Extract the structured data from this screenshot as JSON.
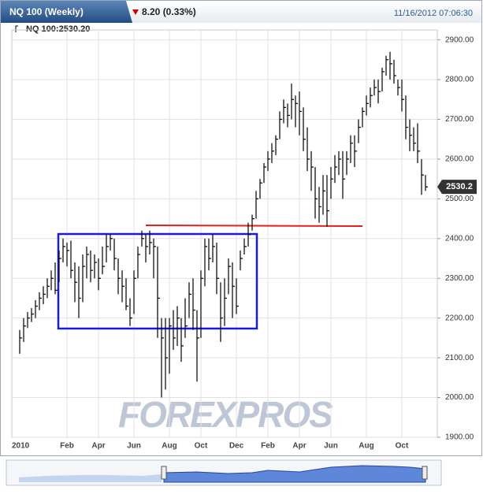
{
  "chart_data": {
    "type": "ohlc",
    "title": "NQ 100 (Weekly)",
    "change": "8.20 (0.33%)",
    "timestamp": "11/16/2012 07:06:30",
    "instrument_label": "NQ 100:2530.20",
    "last_price": 2530.2,
    "watermark": "FOREXPROS",
    "color": "#000000",
    "grid": true,
    "ylim": [
      1900,
      2925
    ],
    "yticks": [
      {
        "value": 1900,
        "label": "1900.00"
      },
      {
        "value": 2000,
        "label": "2000.00"
      },
      {
        "value": 2100,
        "label": "2100.00"
      },
      {
        "value": 2200,
        "label": "2200.00"
      },
      {
        "value": 2300,
        "label": "2300.00"
      },
      {
        "value": 2400,
        "label": "2400.00"
      },
      {
        "value": 2500,
        "label": "2500.00"
      },
      {
        "value": 2600,
        "label": "2600.00"
      },
      {
        "value": 2700,
        "label": "2700.00"
      },
      {
        "value": 2800,
        "label": "2800.00"
      },
      {
        "value": 2900,
        "label": "2900.00"
      }
    ],
    "categories": [
      "2010",
      null,
      null,
      null,
      null,
      null,
      null,
      null,
      null,
      null,
      null,
      null,
      "Feb",
      null,
      null,
      null,
      null,
      null,
      null,
      null,
      "Apr",
      null,
      null,
      null,
      null,
      null,
      null,
      null,
      null,
      "Jun",
      null,
      null,
      null,
      null,
      null,
      null,
      null,
      null,
      "Aug",
      null,
      null,
      null,
      null,
      null,
      null,
      null,
      "Oct",
      null,
      null,
      null,
      null,
      null,
      null,
      null,
      null,
      "Dec",
      null,
      null,
      null,
      null,
      null,
      null,
      null,
      "Feb",
      null,
      null,
      null,
      null,
      null,
      null,
      null,
      "Apr",
      null,
      null,
      null,
      null,
      null,
      null,
      null,
      "Jun",
      null,
      null,
      null,
      null,
      null,
      null,
      null,
      null,
      "Aug",
      null,
      null,
      null,
      null,
      null,
      null,
      null,
      null,
      "Oct",
      null,
      null,
      null,
      null,
      null,
      null
    ],
    "high": [
      2170,
      2200,
      2215,
      2225,
      2245,
      2265,
      2280,
      2300,
      2320,
      2340,
      2370,
      2400,
      2390,
      2395,
      2340,
      2330,
      2360,
      2380,
      2370,
      2360,
      2350,
      2380,
      2410,
      2410,
      2400,
      2350,
      2320,
      2300,
      2250,
      2320,
      2380,
      2420,
      2410,
      2420,
      2400,
      2380,
      2200,
      2200,
      2200,
      2220,
      2230,
      2200,
      2250,
      2290,
      2300,
      2220,
      2320,
      2400,
      2400,
      2410,
      2390,
      2290,
      2300,
      2350,
      2340,
      2300,
      2370,
      2400,
      2440,
      2460,
      2520,
      2550,
      2590,
      2620,
      2640,
      2660,
      2720,
      2750,
      2740,
      2790,
      2760,
      2770,
      2730,
      2680,
      2620,
      2580,
      2530,
      2560,
      2560,
      2580,
      2610,
      2620,
      2620,
      2620,
      2660,
      2660,
      2700,
      2730,
      2760,
      2780,
      2800,
      2800,
      2830,
      2860,
      2870,
      2850,
      2800,
      2800,
      2760,
      2700,
      2680,
      2690,
      2600,
      2560
    ],
    "low": [
      2110,
      2140,
      2175,
      2190,
      2200,
      2220,
      2235,
      2250,
      2270,
      2260,
      2290,
      2340,
      2330,
      2300,
      2240,
      2200,
      2240,
      2300,
      2290,
      2300,
      2270,
      2310,
      2340,
      2370,
      2320,
      2260,
      2240,
      2220,
      2180,
      2210,
      2300,
      2380,
      2340,
      2360,
      2300,
      2150,
      2000,
      2020,
      2060,
      2120,
      2130,
      2090,
      2150,
      2200,
      2170,
      2040,
      2150,
      2280,
      2320,
      2340,
      2260,
      2140,
      2180,
      2260,
      2200,
      2210,
      2320,
      2360,
      2380,
      2420,
      2450,
      2500,
      2540,
      2570,
      2590,
      2610,
      2650,
      2690,
      2680,
      2700,
      2680,
      2660,
      2620,
      2570,
      2520,
      2450,
      2440,
      2460,
      2430,
      2500,
      2540,
      2560,
      2500,
      2560,
      2590,
      2580,
      2640,
      2680,
      2710,
      2730,
      2760,
      2740,
      2770,
      2810,
      2800,
      2790,
      2760,
      2720,
      2650,
      2620,
      2620,
      2590,
      2510,
      2520
    ],
    "close": [
      2150,
      2180,
      2200,
      2210,
      2230,
      2250,
      2260,
      2280,
      2300,
      2270,
      2350,
      2380,
      2370,
      2320,
      2290,
      2250,
      2330,
      2360,
      2320,
      2340,
      2300,
      2330,
      2380,
      2400,
      2350,
      2300,
      2280,
      2230,
      2200,
      2300,
      2360,
      2400,
      2380,
      2390,
      2380,
      2250,
      2150,
      2100,
      2180,
      2150,
      2200,
      2130,
      2180,
      2260,
      2220,
      2150,
      2300,
      2380,
      2350,
      2380,
      2300,
      2200,
      2250,
      2330,
      2280,
      2230,
      2350,
      2380,
      2410,
      2450,
      2500,
      2540,
      2580,
      2600,
      2620,
      2650,
      2700,
      2730,
      2710,
      2750,
      2740,
      2720,
      2650,
      2600,
      2580,
      2500,
      2480,
      2520,
      2470,
      2550,
      2580,
      2600,
      2550,
      2600,
      2640,
      2620,
      2680,
      2720,
      2740,
      2760,
      2780,
      2770,
      2820,
      2850,
      2840,
      2810,
      2780,
      2750,
      2680,
      2660,
      2640,
      2620,
      2560,
      2530
    ]
  }
}
